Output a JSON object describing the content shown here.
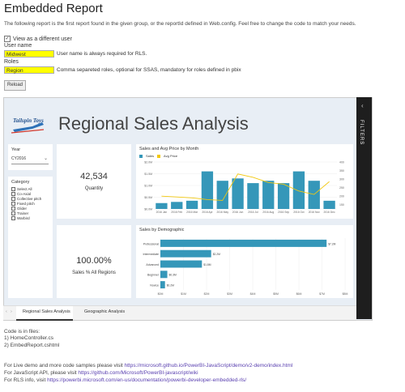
{
  "page": {
    "title": "Embedded Report",
    "intro": "The following report is the first report found in the given group, or the reportId defined in Web.config. Feel free to change the code to match your needs.",
    "view_as_label": "View as a different user",
    "username_label": "User name",
    "username_value": "Midwest",
    "username_note": "User name is always required for RLS.",
    "roles_label": "Roles",
    "roles_value": "Region",
    "roles_note": "Comma separeted roles, optional for SSAS, mandatory for roles defined in pbix",
    "reload_label": "Reload"
  },
  "report": {
    "logo_text": "Tailspin Toys",
    "title": "Regional Sales Analysis",
    "filters_label": "FILTERS",
    "year_label": "Year",
    "year_value": "CY2016",
    "category_label": "Category",
    "categories": [
      "Select All",
      "Co-Axial",
      "Collective pitch",
      "Fixed pitch",
      "Glider",
      "Trainer",
      "Warbird"
    ],
    "kpi1_value": "42,534",
    "kpi1_label": "Quantity",
    "kpi2_value": "100.00%",
    "kpi2_label": "Sales % All Regions",
    "tabs": [
      "Regional Sales Analysis",
      "Geographic Analysis"
    ]
  },
  "chart_data": [
    {
      "type": "bar",
      "title": "Sales and Avg Price by Month",
      "legend": [
        "Sales",
        "Avg Price"
      ],
      "categories": [
        "2016 Jan",
        "2016 Feb",
        "2016 Mar",
        "2016 Apr",
        "2016 May",
        "2016 Jun",
        "2016 Jul",
        "2016 Aug",
        "2016 Sep",
        "2016 Oct",
        "2016 Nov",
        "2016 Dec"
      ],
      "y_left_ticks": [
        "$0.0M",
        "$0.5M",
        "$1.0M",
        "$1.5M",
        "$2.0M"
      ],
      "y_right_ticks": [
        "150",
        "200",
        "250",
        "300",
        "350",
        "400"
      ],
      "ylim": [
        0,
        2.0
      ],
      "y2lim": [
        125,
        400
      ],
      "series": [
        {
          "name": "Sales",
          "values": [
            0.25,
            0.3,
            0.35,
            1.6,
            1.2,
            1.3,
            1.1,
            1.2,
            1.1,
            1.6,
            1.2,
            0.35
          ]
        },
        {
          "name": "Avg Price",
          "values": [
            200,
            195,
            190,
            180,
            175,
            330,
            310,
            280,
            270,
            230,
            210,
            285
          ]
        }
      ]
    },
    {
      "type": "bar",
      "title": "Sales by Demographic",
      "categories": [
        "Professional",
        "Intermediate",
        "Advanced",
        "Beginner",
        "Novice"
      ],
      "values": [
        7.2,
        2.2,
        1.8,
        0.3,
        0.2
      ],
      "data_labels": [
        "$7.2M",
        "$2.2M",
        "$1.8M",
        "$0.3M",
        "$0.2M"
      ],
      "x_ticks": [
        "$0M",
        "$1M",
        "$2M",
        "$3M",
        "$4M",
        "$5M",
        "$6M",
        "$7M",
        "$8M"
      ],
      "xlim": [
        0,
        8
      ]
    }
  ],
  "footer": {
    "code_in_files": "Code is in files:",
    "file1": "1) HomeController.cs",
    "file2": "2) EmbedReport.cshtml",
    "live_demo_prefix": "For Live demo and more code samples please visit ",
    "live_demo_link": "https://microsoft.github.io/PowerBI-JavaScript/demo/v2-demo/index.html",
    "js_api_prefix": "For JavaScript API, please visit ",
    "js_api_link": "https://github.com/Microsoft/PowerBI-javascript/wiki",
    "rls_prefix": "For RLS info, visit ",
    "rls_link": "https://powerbi.microsoft.com/en-us/documentation/powerbi-developer-embedded-rls/"
  },
  "colors": {
    "bar": "#3597b9",
    "line": "#f2c80f",
    "report_bg": "#e8eef5"
  }
}
